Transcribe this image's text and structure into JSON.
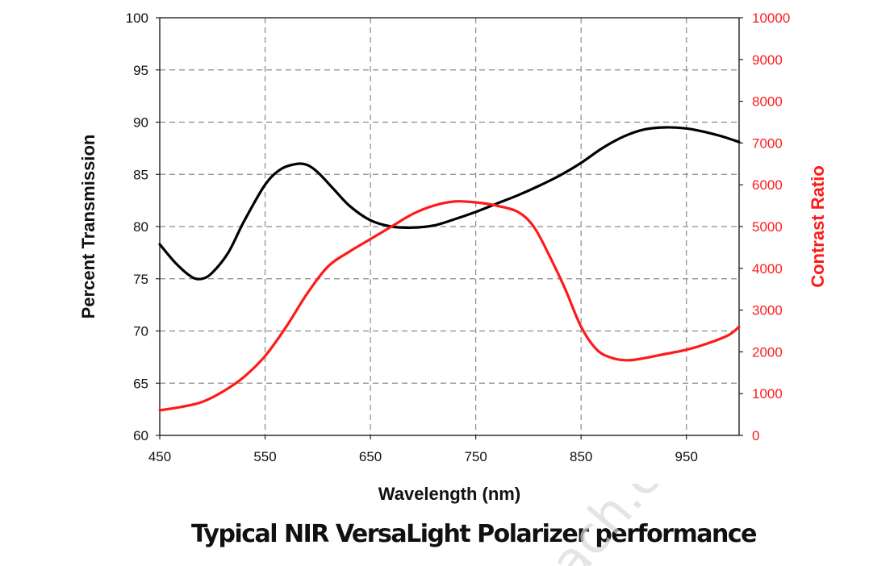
{
  "chart_data": {
    "type": "line",
    "title": "",
    "caption": "Typical NIR VersaLight Polarizer performance",
    "xlabel": "Wavelength (nm)",
    "ylabel": "Percent Transmission",
    "y2label": "Contrast Ratio",
    "xlim": [
      450,
      1000
    ],
    "ylim": [
      60,
      100
    ],
    "y2lim": [
      0,
      10000
    ],
    "x_ticks": [
      450,
      550,
      650,
      750,
      850,
      950
    ],
    "y_ticks": [
      60,
      65,
      70,
      75,
      80,
      85,
      90,
      95,
      100
    ],
    "y2_ticks": [
      0,
      1000,
      2000,
      3000,
      4000,
      5000,
      6000,
      7000,
      8000,
      9000,
      10000
    ],
    "grid": true,
    "series": [
      {
        "name": "",
        "axis": "left",
        "color": "#000000",
        "x": [
          450,
          465,
          480,
          490,
          500,
          515,
          530,
          550,
          565,
          580,
          590,
          600,
          615,
          630,
          650,
          670,
          690,
          710,
          730,
          750,
          770,
          790,
          810,
          830,
          850,
          870,
          890,
          910,
          930,
          950,
          970,
          985,
          1000
        ],
        "y": [
          78.3,
          76.5,
          75.2,
          75.0,
          75.6,
          77.5,
          80.5,
          84.0,
          85.5,
          86.0,
          85.9,
          85.2,
          83.6,
          82.0,
          80.6,
          80.0,
          79.9,
          80.1,
          80.7,
          81.4,
          82.2,
          83.0,
          83.9,
          84.9,
          86.1,
          87.5,
          88.6,
          89.3,
          89.5,
          89.4,
          89.0,
          88.6,
          88.1
        ]
      },
      {
        "name": "",
        "axis": "right",
        "color": "#ff1a1a",
        "x": [
          450,
          470,
          490,
          510,
          530,
          550,
          570,
          590,
          610,
          630,
          650,
          670,
          690,
          710,
          730,
          750,
          770,
          790,
          805,
          820,
          835,
          850,
          865,
          880,
          895,
          910,
          930,
          950,
          970,
          990,
          1000
        ],
        "y": [
          600,
          680,
          800,
          1050,
          1400,
          1900,
          2600,
          3400,
          4050,
          4400,
          4700,
          5000,
          5300,
          5500,
          5600,
          5580,
          5500,
          5350,
          5000,
          4300,
          3500,
          2600,
          2050,
          1850,
          1800,
          1850,
          1950,
          2050,
          2200,
          2400,
          2600
        ]
      }
    ]
  },
  "watermark": "ach.com"
}
